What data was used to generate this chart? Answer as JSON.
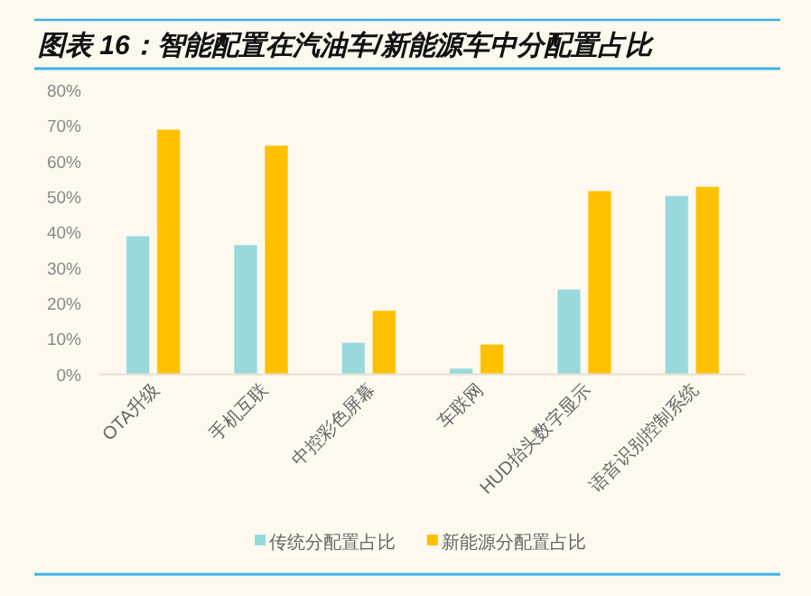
{
  "chart_data": {
    "type": "bar",
    "title": "图表 16：智能配置在汽油车/新能源车中分配置占比",
    "categories": [
      "OTA升级",
      "手机互联",
      "中控彩色屏幕",
      "车联网",
      "HUD抬头数字显示",
      "语音识别控制系统"
    ],
    "series": [
      {
        "name": "传统分配置占比",
        "color": "#9ad9db",
        "values": [
          39,
          36.5,
          9,
          1.7,
          24,
          50.3
        ]
      },
      {
        "name": "新能源分配置占比",
        "color": "#ffc000",
        "values": [
          69,
          64.5,
          18,
          8.5,
          51.7,
          52.9
        ]
      }
    ],
    "ylim": [
      0,
      80
    ],
    "yticks": [
      {
        "value": 0,
        "label": "0%"
      },
      {
        "value": 10,
        "label": "10%"
      },
      {
        "value": 20,
        "label": "20%"
      },
      {
        "value": 30,
        "label": "30%"
      },
      {
        "value": 40,
        "label": "40%"
      },
      {
        "value": 50,
        "label": "50%"
      },
      {
        "value": 60,
        "label": "60%"
      },
      {
        "value": 70,
        "label": "70%"
      },
      {
        "value": 80,
        "label": "80%"
      }
    ],
    "grid": false,
    "legend": "bottom"
  }
}
